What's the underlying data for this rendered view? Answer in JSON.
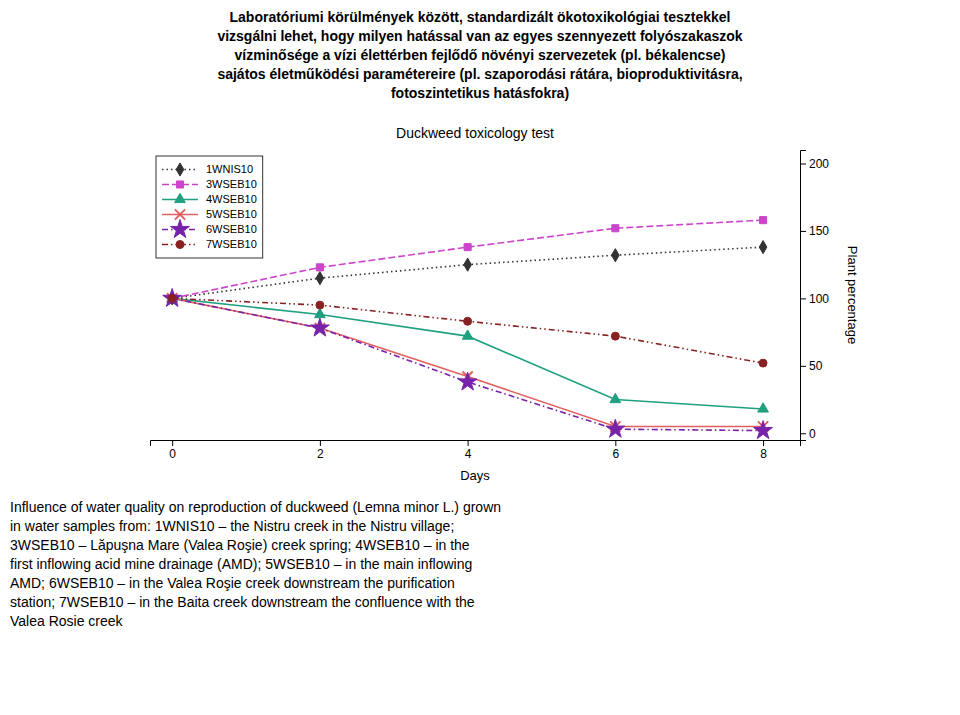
{
  "chart_data": {
    "type": "line",
    "title": "Duckweed toxicology test",
    "subtitle": [
      "Laboratóriumi körülmények között, standardizált ökotoxikológiai tesztekkel",
      "vizsgálni lehet, hogy milyen hatással van az egyes szennyezett folyószakaszok",
      "vízminősége a vízi élettérben fejlődő növényi szervezetek (pl. békalencse)",
      "sajátos életműködési paramétereire (pl. szaporodási rátára, bioproduktivitásra,",
      "fotoszintetikus hatásfokra)"
    ],
    "xlabel": "Days",
    "ylabel": "Plant percentage",
    "x": [
      0,
      2,
      4,
      6,
      8
    ],
    "series": [
      {
        "name": "1WNIS10",
        "color": "#333333",
        "marker": "diamond",
        "line_style": "dotted",
        "values": [
          100,
          115,
          125,
          132,
          138
        ]
      },
      {
        "name": "3WSEB10",
        "color": "#CC44CC",
        "marker": "square",
        "line_style": "dashed",
        "values": [
          100,
          123,
          138,
          152,
          158
        ]
      },
      {
        "name": "4WSEB10",
        "color": "#20A080",
        "marker": "triangle",
        "line_style": "solid",
        "values": [
          100,
          88,
          72,
          25,
          18
        ]
      },
      {
        "name": "5WSEB10",
        "color": "#E06060",
        "marker": "x",
        "line_style": "solid",
        "values": [
          100,
          78,
          42,
          5,
          5
        ]
      },
      {
        "name": "6WSEB10",
        "color": "#7722AA",
        "marker": "star",
        "line_style": "dashdot",
        "values": [
          100,
          78,
          38,
          3,
          2
        ]
      },
      {
        "name": "7WSEB10",
        "color": "#882222",
        "marker": "circle",
        "line_style": "dashdotdot",
        "values": [
          100,
          95,
          83,
          72,
          52
        ]
      }
    ],
    "xlim": [
      -0.3,
      8.5
    ],
    "xticks": [
      0,
      2,
      4,
      6,
      8
    ],
    "ylim": [
      -5,
      210
    ],
    "yticks": [
      0,
      50,
      100,
      150,
      200
    ],
    "grid": false,
    "legend": "upper left",
    "annotations": [
      "Influence of water quality on reproduction of duckweed (Lemna minor L.) grown",
      "in water samples from: 1WNIS10 – the Nistru creek in the Nistru village;",
      "3WSEB10 – Lăpuşna Mare (Valea Roşie) creek spring; 4WSEB10 – in the",
      "first inflowing acid mine drainage (AMD); 5WSEB10 – in the main inflowing",
      "AMD; 6WSEB10 – in the Valea Roşie creek downstream the purification",
      "station; 7WSEB10 – in the Baita creek downstream the confluence with the",
      "Valea Rosie creek"
    ]
  }
}
